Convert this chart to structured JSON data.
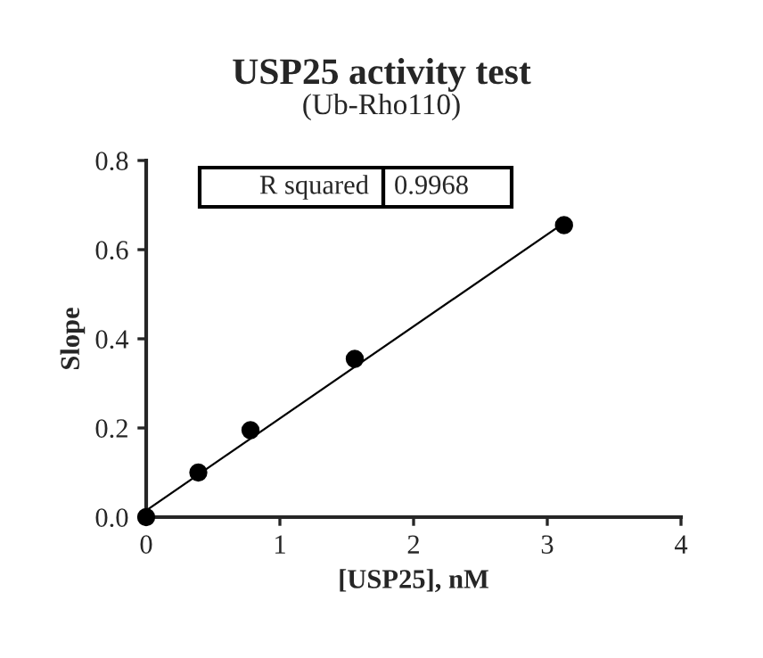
{
  "chart_data": {
    "type": "scatter",
    "title": "USP25 activity test",
    "subtitle": "(Ub-Rho110)",
    "xlabel": "[USP25], nM",
    "ylabel": "Slope",
    "x": [
      0,
      0.39,
      0.78,
      1.56,
      3.125
    ],
    "series": [
      {
        "color": "#000000",
        "marker": "circle",
        "values": [
          0,
          0.1,
          0.195,
          0.355,
          0.655
        ]
      },
      {
        "type": "line",
        "color": "#000000",
        "marker": "none",
        "line_style": "solid",
        "x": [
          0,
          3.125
        ],
        "values": [
          0.015,
          0.66
        ]
      }
    ],
    "annotations": [
      "R squared",
      "0.9968"
    ],
    "xlim": [
      0,
      4
    ],
    "xticks": [
      0,
      1,
      2,
      3,
      4
    ],
    "ylim": [
      0,
      0.8
    ],
    "yticks": [
      {
        "value": 0,
        "label": "0.0"
      },
      0.2,
      0.4,
      0.6,
      0.8
    ],
    "grid": false,
    "legend": false
  }
}
